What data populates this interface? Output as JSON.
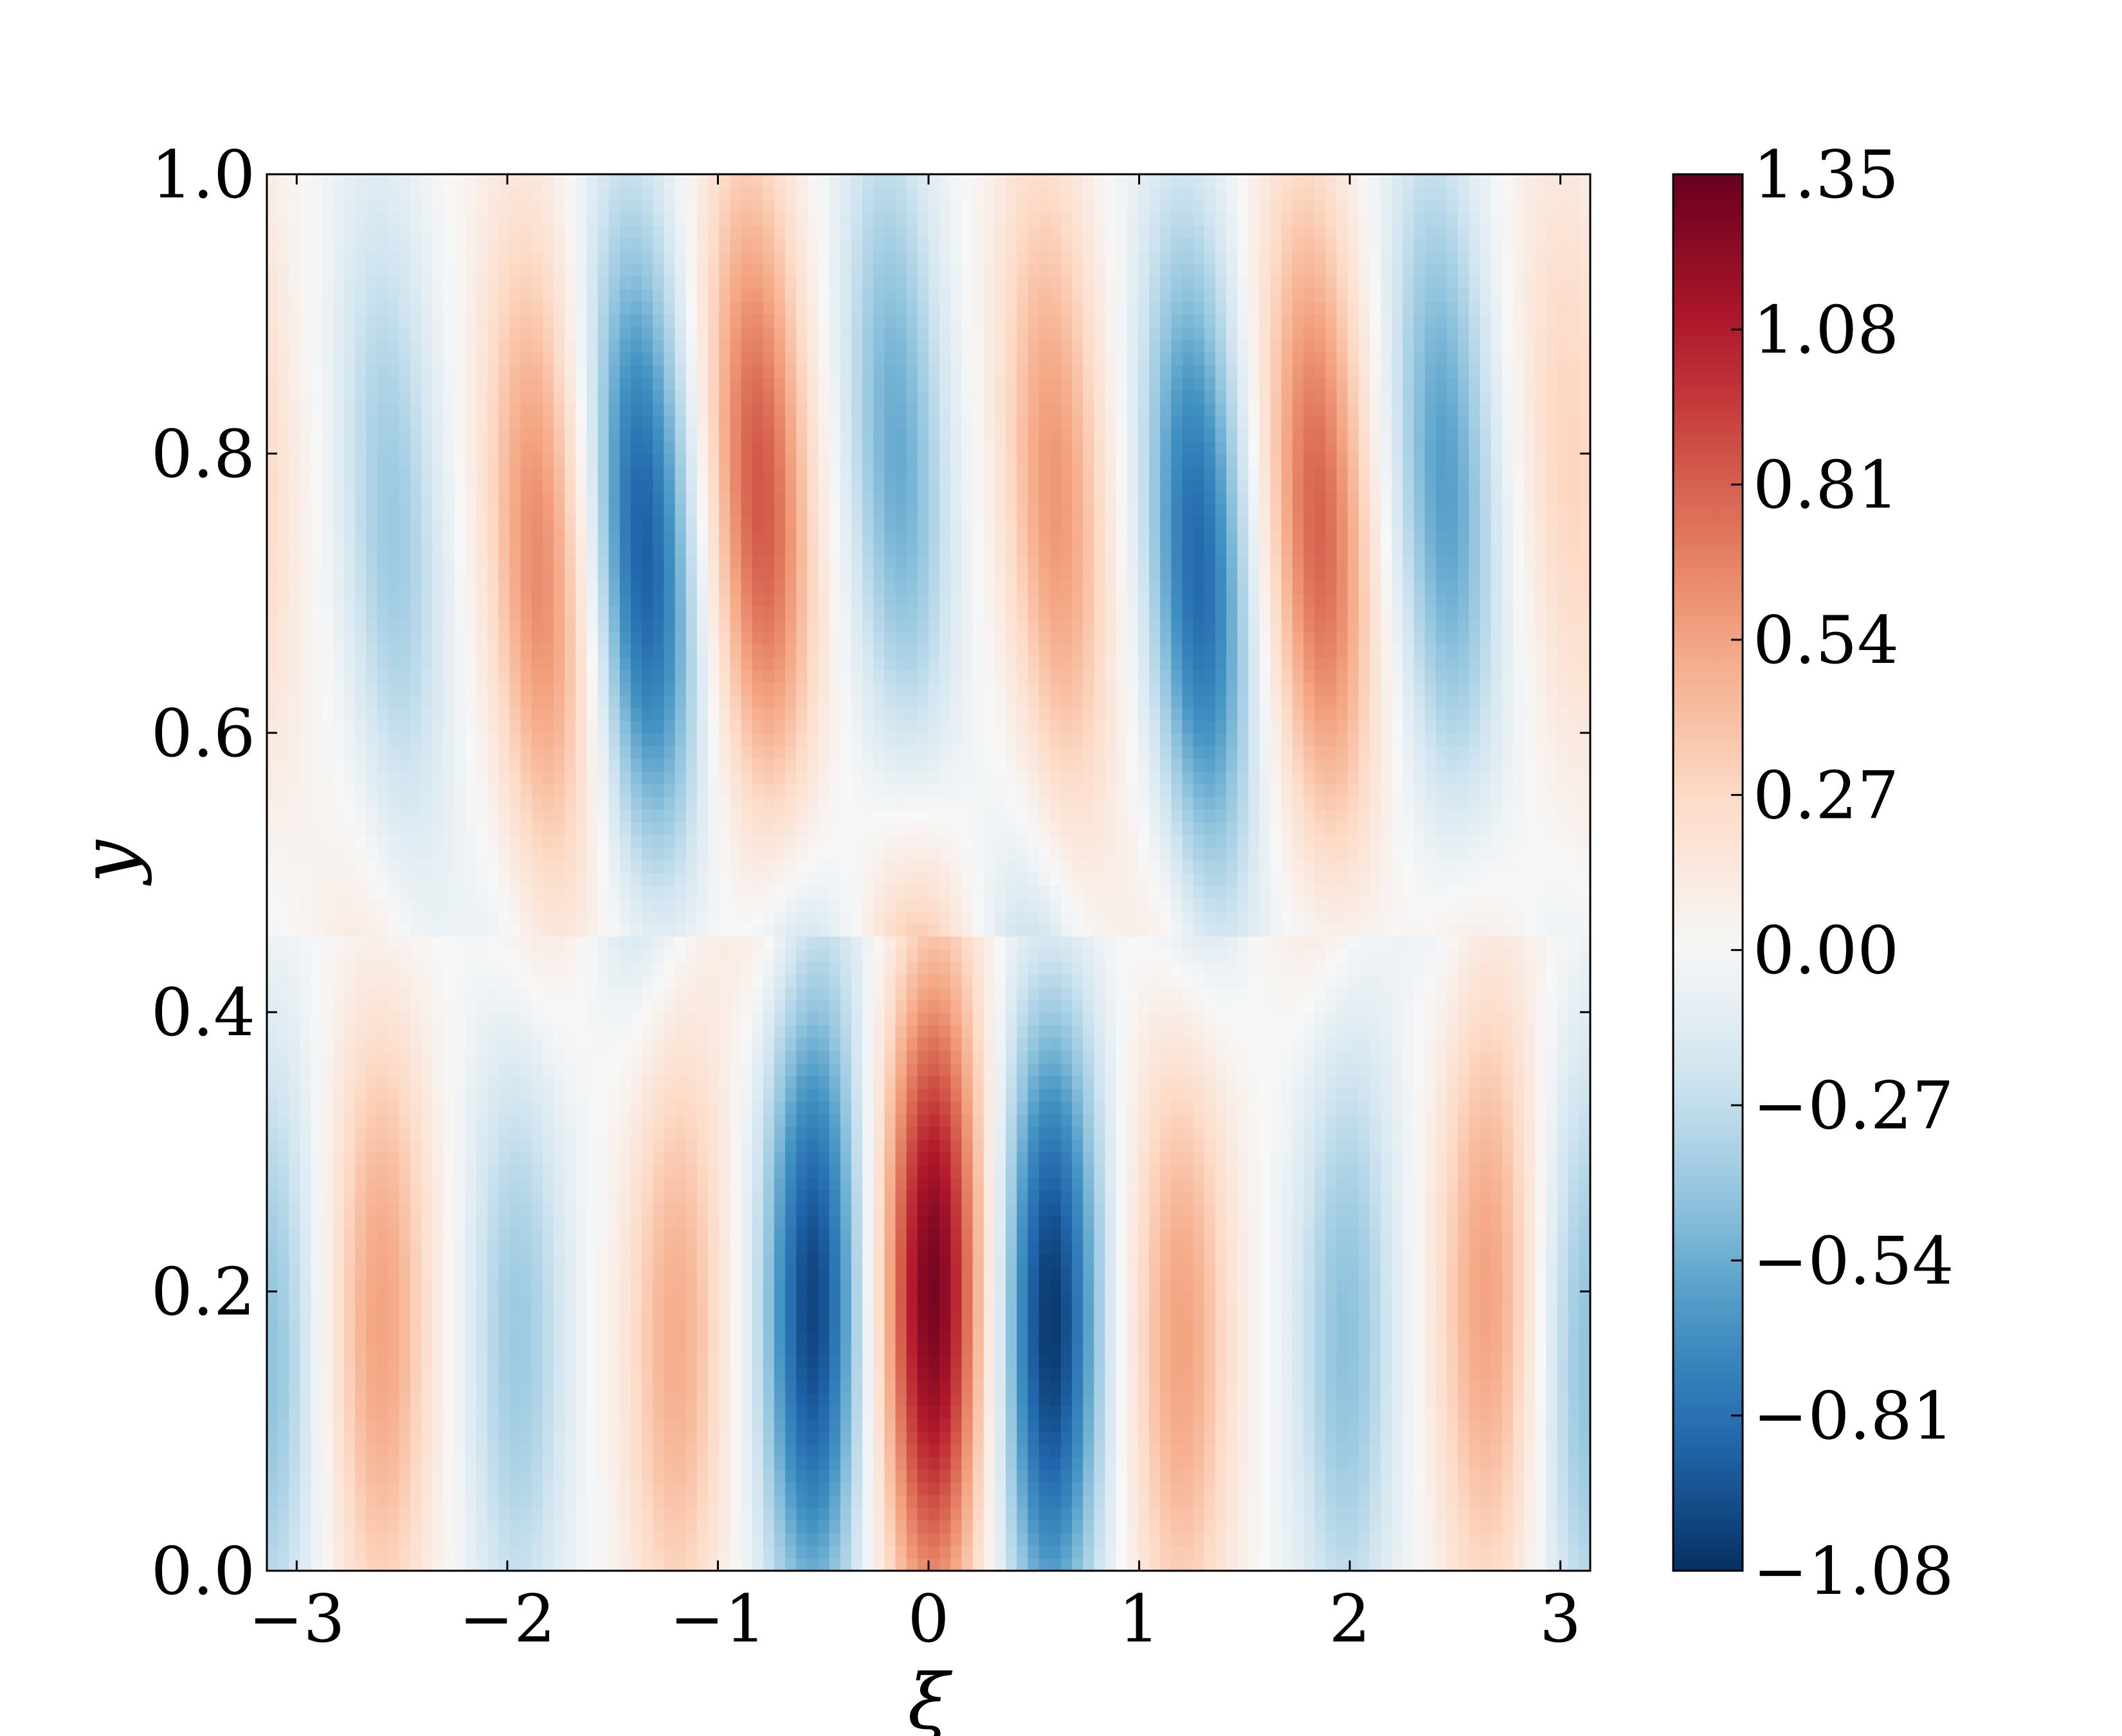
{
  "chart_data": {
    "type": "heatmap",
    "title": "",
    "xlabel": "ξ",
    "ylabel": "y",
    "xlim": [
      -3.1416,
      3.1416
    ],
    "ylim": [
      0.0,
      1.0
    ],
    "x_ticks": [
      "−3",
      "−2",
      "−1",
      "0",
      "1",
      "2",
      "3"
    ],
    "x_tick_values": [
      -3,
      -2,
      -1,
      0,
      1,
      2,
      3
    ],
    "y_ticks": [
      "0.0",
      "0.2",
      "0.4",
      "0.6",
      "0.8",
      "1.0"
    ],
    "y_tick_values": [
      0.0,
      0.2,
      0.4,
      0.6,
      0.8,
      1.0
    ],
    "colorbar": {
      "position": "right",
      "colormap": "RdBu_r",
      "range": [
        -1.08,
        1.35
      ],
      "tick_values": [
        -1.08,
        -0.81,
        -0.54,
        -0.27,
        0.0,
        0.27,
        0.54,
        0.81,
        1.08,
        1.35
      ],
      "tick_labels": [
        "−1.08",
        "−0.81",
        "−0.54",
        "−0.27",
        "0.00",
        "0.27",
        "0.54",
        "0.81",
        "1.08",
        "1.35"
      ]
    },
    "field_features": [
      {
        "xi": -2.6,
        "y": 0.18,
        "value": 0.55
      },
      {
        "xi": -1.95,
        "y": 0.17,
        "value": -0.4
      },
      {
        "xi": -1.2,
        "y": 0.17,
        "value": 0.5
      },
      {
        "xi": -0.55,
        "y": 0.19,
        "value": -1.0
      },
      {
        "xi": 0.02,
        "y": 0.2,
        "value": 1.3
      },
      {
        "xi": 0.58,
        "y": 0.18,
        "value": -1.05
      },
      {
        "xi": 1.2,
        "y": 0.17,
        "value": 0.55
      },
      {
        "xi": 1.98,
        "y": 0.17,
        "value": -0.45
      },
      {
        "xi": 2.65,
        "y": 0.2,
        "value": 0.55
      },
      {
        "xi": 3.14,
        "y": 0.15,
        "value": -0.45
      },
      {
        "xi": -2.55,
        "y": 0.75,
        "value": -0.4
      },
      {
        "xi": -1.85,
        "y": 0.72,
        "value": 0.65
      },
      {
        "xi": -1.35,
        "y": 0.73,
        "value": -0.9
      },
      {
        "xi": -0.8,
        "y": 0.77,
        "value": 0.85
      },
      {
        "xi": -0.15,
        "y": 0.8,
        "value": -0.55
      },
      {
        "xi": 0.6,
        "y": 0.77,
        "value": 0.6
      },
      {
        "xi": 1.28,
        "y": 0.72,
        "value": -0.85
      },
      {
        "xi": 1.85,
        "y": 0.75,
        "value": 0.8
      },
      {
        "xi": 2.45,
        "y": 0.78,
        "value": -0.6
      },
      {
        "xi": 3.05,
        "y": 0.8,
        "value": 0.3
      }
    ]
  }
}
